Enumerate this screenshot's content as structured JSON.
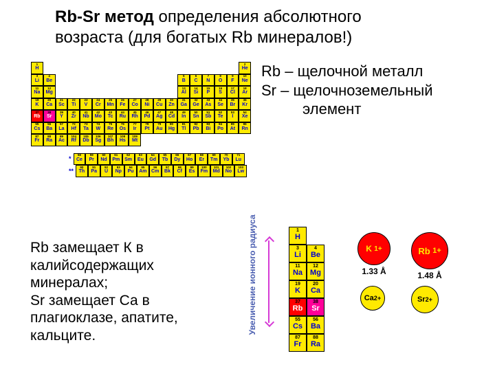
{
  "title": {
    "bold": "Rb-Sr метод",
    "rest": " определения абсолютного",
    "line2": "возраста (для богатых Rb минералов!)"
  },
  "righttext": {
    "l1": "Rb – щелочной металл",
    "l2": "Sr – щелочноземельный",
    "l3": "элемент"
  },
  "lowertext": {
    "l1": "Rb замещает К в",
    "l2": "калийсодержащих",
    "l3": "минералах;",
    "l4": "Sr замещает Са в",
    "l5": "плагиоклазе, апатите,",
    "l6": "кальците."
  },
  "ylabel": "Увеличение ионного радиуса",
  "ions": {
    "k": {
      "label": "K",
      "charge": "1+",
      "radius": "1.33 Å"
    },
    "rb": {
      "label": "Rb",
      "charge": "1+",
      "radius": "1.48 Å"
    },
    "ca": {
      "label": "Ca",
      "charge": "2+"
    },
    "sr": {
      "label": "Sr",
      "charge": "2+"
    }
  },
  "periodic": {
    "rows": [
      [
        {
          "n": "1",
          "s": "H"
        },
        null,
        null,
        null,
        null,
        null,
        null,
        null,
        null,
        null,
        null,
        null,
        null,
        null,
        null,
        null,
        null,
        {
          "n": "2",
          "s": "He"
        }
      ],
      [
        {
          "n": "3",
          "s": "Li"
        },
        {
          "n": "4",
          "s": "Be"
        },
        null,
        null,
        null,
        null,
        null,
        null,
        null,
        null,
        null,
        null,
        {
          "n": "5",
          "s": "B"
        },
        {
          "n": "6",
          "s": "C"
        },
        {
          "n": "7",
          "s": "N"
        },
        {
          "n": "8",
          "s": "O"
        },
        {
          "n": "9",
          "s": "F"
        },
        {
          "n": "10",
          "s": "Ne"
        }
      ],
      [
        {
          "n": "11",
          "s": "Na"
        },
        {
          "n": "12",
          "s": "Mg"
        },
        null,
        null,
        null,
        null,
        null,
        null,
        null,
        null,
        null,
        null,
        {
          "n": "13",
          "s": "Al"
        },
        {
          "n": "14",
          "s": "Si"
        },
        {
          "n": "15",
          "s": "P"
        },
        {
          "n": "16",
          "s": "S"
        },
        {
          "n": "17",
          "s": "Cl"
        },
        {
          "n": "18",
          "s": "Ar"
        }
      ],
      [
        {
          "n": "19",
          "s": "K"
        },
        {
          "n": "20",
          "s": "Ca"
        },
        {
          "n": "21",
          "s": "Sc"
        },
        {
          "n": "22",
          "s": "Ti"
        },
        {
          "n": "23",
          "s": "V"
        },
        {
          "n": "24",
          "s": "Cr"
        },
        {
          "n": "25",
          "s": "Mn"
        },
        {
          "n": "26",
          "s": "Fe"
        },
        {
          "n": "27",
          "s": "Co"
        },
        {
          "n": "28",
          "s": "Ni"
        },
        {
          "n": "29",
          "s": "Cu"
        },
        {
          "n": "30",
          "s": "Zn"
        },
        {
          "n": "31",
          "s": "Ga"
        },
        {
          "n": "32",
          "s": "Ge"
        },
        {
          "n": "33",
          "s": "As"
        },
        {
          "n": "34",
          "s": "Se"
        },
        {
          "n": "35",
          "s": "Br"
        },
        {
          "n": "36",
          "s": "Kr"
        }
      ],
      [
        {
          "n": "37",
          "s": "Rb",
          "c": "rb"
        },
        {
          "n": "38",
          "s": "Sr",
          "c": "sr"
        },
        {
          "n": "39",
          "s": "Y"
        },
        {
          "n": "40",
          "s": "Zr"
        },
        {
          "n": "41",
          "s": "Nb"
        },
        {
          "n": "42",
          "s": "Mo"
        },
        {
          "n": "43",
          "s": "Tc"
        },
        {
          "n": "44",
          "s": "Ru"
        },
        {
          "n": "45",
          "s": "Rh"
        },
        {
          "n": "46",
          "s": "Pd"
        },
        {
          "n": "47",
          "s": "Ag"
        },
        {
          "n": "48",
          "s": "Cd"
        },
        {
          "n": "49",
          "s": "In"
        },
        {
          "n": "50",
          "s": "Sn"
        },
        {
          "n": "51",
          "s": "Sb"
        },
        {
          "n": "52",
          "s": "Te"
        },
        {
          "n": "53",
          "s": "I"
        },
        {
          "n": "54",
          "s": "Xe"
        }
      ],
      [
        {
          "n": "55",
          "s": "Cs"
        },
        {
          "n": "56",
          "s": "Ba"
        },
        {
          "n": "57",
          "s": "La"
        },
        {
          "n": "72",
          "s": "Hf"
        },
        {
          "n": "73",
          "s": "Ta"
        },
        {
          "n": "74",
          "s": "W"
        },
        {
          "n": "75",
          "s": "Re"
        },
        {
          "n": "76",
          "s": "Os"
        },
        {
          "n": "77",
          "s": "Ir"
        },
        {
          "n": "78",
          "s": "Pt"
        },
        {
          "n": "79",
          "s": "Au"
        },
        {
          "n": "80",
          "s": "Hg"
        },
        {
          "n": "81",
          "s": "Tl"
        },
        {
          "n": "82",
          "s": "Pb"
        },
        {
          "n": "83",
          "s": "Bi"
        },
        {
          "n": "84",
          "s": "Po"
        },
        {
          "n": "85",
          "s": "At"
        },
        {
          "n": "86",
          "s": "Rn"
        }
      ],
      [
        {
          "n": "87",
          "s": "Fr"
        },
        {
          "n": "88",
          "s": "Ra"
        },
        {
          "n": "89",
          "s": "Ac"
        },
        {
          "n": "104",
          "s": "Rf"
        },
        {
          "n": "105",
          "s": "Db"
        },
        {
          "n": "106",
          "s": "Sg"
        },
        {
          "n": "107",
          "s": "Bh"
        },
        {
          "n": "108",
          "s": "Hs"
        },
        {
          "n": "109",
          "s": "Mt"
        },
        null,
        null,
        null,
        null,
        null,
        null,
        null,
        null,
        null
      ]
    ],
    "lanth": [
      [
        {
          "n": "58",
          "s": "Ce"
        },
        {
          "n": "59",
          "s": "Pr"
        },
        {
          "n": "60",
          "s": "Nd"
        },
        {
          "n": "61",
          "s": "Pm"
        },
        {
          "n": "62",
          "s": "Sm"
        },
        {
          "n": "63",
          "s": "Eu"
        },
        {
          "n": "64",
          "s": "Gd"
        },
        {
          "n": "65",
          "s": "Tb"
        },
        {
          "n": "66",
          "s": "Dy"
        },
        {
          "n": "67",
          "s": "Ho"
        },
        {
          "n": "68",
          "s": "Er"
        },
        {
          "n": "69",
          "s": "Tm"
        },
        {
          "n": "70",
          "s": "Yb"
        },
        {
          "n": "71",
          "s": "Lu"
        }
      ],
      [
        {
          "n": "90",
          "s": "Th"
        },
        {
          "n": "91",
          "s": "Pa"
        },
        {
          "n": "92",
          "s": "U"
        },
        {
          "n": "93",
          "s": "Np"
        },
        {
          "n": "94",
          "s": "Pu"
        },
        {
          "n": "95",
          "s": "Am"
        },
        {
          "n": "96",
          "s": "Cm"
        },
        {
          "n": "97",
          "s": "Bk"
        },
        {
          "n": "98",
          "s": "Cf"
        },
        {
          "n": "99",
          "s": "Es"
        },
        {
          "n": "100",
          "s": "Fm"
        },
        {
          "n": "101",
          "s": "Md"
        },
        {
          "n": "102",
          "s": "No"
        },
        {
          "n": "103",
          "s": "Lw"
        }
      ]
    ]
  },
  "mini": [
    [
      {
        "n": "1",
        "s": "H"
      },
      null
    ],
    [
      {
        "n": "3",
        "s": "Li"
      },
      {
        "n": "4",
        "s": "Be"
      }
    ],
    [
      {
        "n": "11",
        "s": "Na"
      },
      {
        "n": "12",
        "s": "Mg"
      }
    ],
    [
      {
        "n": "19",
        "s": "K"
      },
      {
        "n": "20",
        "s": "Ca"
      }
    ],
    [
      {
        "n": "37",
        "s": "Rb",
        "c": "rb"
      },
      {
        "n": "38",
        "s": "Sr",
        "c": "sr"
      }
    ],
    [
      {
        "n": "55",
        "s": "Cs"
      },
      {
        "n": "56",
        "s": "Ba"
      }
    ],
    [
      {
        "n": "87",
        "s": "Fr"
      },
      {
        "n": "88",
        "s": "Ra"
      }
    ]
  ]
}
